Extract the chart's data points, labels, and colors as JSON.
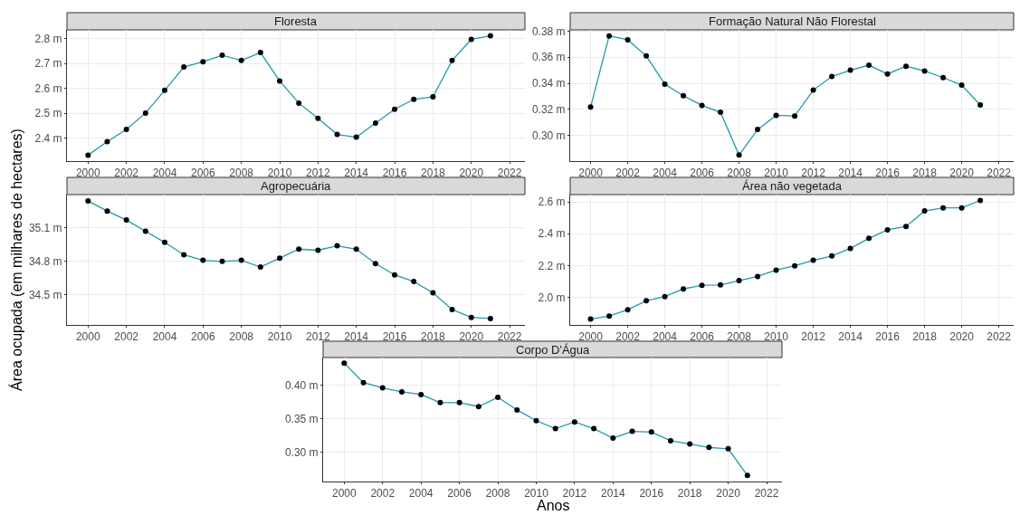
{
  "chart_data": [
    {
      "type": "line",
      "title": "Floresta",
      "x": [
        2000,
        2001,
        2002,
        2003,
        2004,
        2005,
        2006,
        2007,
        2008,
        2009,
        2010,
        2011,
        2012,
        2013,
        2014,
        2015,
        2016,
        2017,
        2018,
        2019,
        2020,
        2021
      ],
      "series": [
        {
          "color": "#1f9bab",
          "values": [
            2.332,
            2.386,
            2.435,
            2.501,
            2.592,
            2.686,
            2.707,
            2.733,
            2.712,
            2.744,
            2.63,
            2.541,
            2.48,
            2.415,
            2.404,
            2.461,
            2.516,
            2.556,
            2.566,
            2.712,
            2.797,
            2.811
          ]
        }
      ],
      "xlim": [
        1998.9,
        2022.8
      ],
      "xticks": [
        2000,
        2002,
        2004,
        2006,
        2008,
        2010,
        2012,
        2014,
        2016,
        2018,
        2020,
        2022
      ],
      "ylim": [
        2.308,
        2.835
      ],
      "yticks": [
        {
          "value": 2.4,
          "label": "2.4 m"
        },
        {
          "value": 2.5,
          "label": "2.5 m"
        },
        {
          "value": 2.6,
          "label": "2.6 m"
        },
        {
          "value": 2.7,
          "label": "2.7 m"
        },
        {
          "value": 2.8,
          "label": "2.8 m"
        }
      ],
      "grid": true,
      "marker": "circle"
    },
    {
      "type": "line",
      "title": "Formação Natural Não Florestal",
      "x": [
        2000,
        2001,
        2002,
        2003,
        2004,
        2005,
        2006,
        2007,
        2008,
        2009,
        2010,
        2011,
        2012,
        2013,
        2014,
        2015,
        2016,
        2017,
        2018,
        2019,
        2020,
        2021
      ],
      "series": [
        {
          "color": "#1f9bab",
          "values": [
            0.3218,
            0.3764,
            0.3734,
            0.361,
            0.3394,
            0.3305,
            0.3231,
            0.3178,
            0.285,
            0.3046,
            0.3155,
            0.315,
            0.3348,
            0.3452,
            0.3501,
            0.3539,
            0.3472,
            0.3531,
            0.3495,
            0.3444,
            0.3386,
            0.3234
          ]
        }
      ],
      "xlim": [
        1998.9,
        2022.8
      ],
      "xticks": [
        2000,
        2002,
        2004,
        2006,
        2008,
        2010,
        2012,
        2014,
        2016,
        2018,
        2020,
        2022
      ],
      "ylim": [
        0.2804,
        0.381
      ],
      "yticks": [
        {
          "value": 0.3,
          "label": "0.30 m"
        },
        {
          "value": 0.32,
          "label": "0.32 m"
        },
        {
          "value": 0.34,
          "label": "0.34 m"
        },
        {
          "value": 0.36,
          "label": "0.36 m"
        },
        {
          "value": 0.38,
          "label": "0.38 m"
        }
      ],
      "grid": true,
      "marker": "circle"
    },
    {
      "type": "line",
      "title": "Agropecuária",
      "ylabel": "Área ocupada (em milhares de hectares)",
      "x": [
        2000,
        2001,
        2002,
        2003,
        2004,
        2005,
        2006,
        2007,
        2008,
        2009,
        2010,
        2011,
        2012,
        2013,
        2014,
        2015,
        2016,
        2017,
        2018,
        2019,
        2020,
        2021
      ],
      "series": [
        {
          "color": "#1f9bab",
          "values": [
            35.34,
            35.25,
            35.17,
            35.07,
            34.97,
            34.86,
            34.81,
            34.8,
            34.81,
            34.75,
            34.83,
            34.91,
            34.9,
            34.94,
            34.91,
            34.78,
            34.68,
            34.62,
            34.52,
            34.37,
            34.3,
            34.29
          ]
        }
      ],
      "xlim": [
        1998.9,
        2022.8
      ],
      "xticks": [
        2000,
        2002,
        2004,
        2006,
        2008,
        2010,
        2012,
        2014,
        2016,
        2018,
        2020,
        2022
      ],
      "ylim": [
        34.233,
        35.397
      ],
      "yticks": [
        {
          "value": 34.5,
          "label": "34.5 m"
        },
        {
          "value": 34.8,
          "label": "34.8 m"
        },
        {
          "value": 35.1,
          "label": "35.1 m"
        }
      ],
      "grid": true,
      "marker": "circle"
    },
    {
      "type": "line",
      "title": "Área não vegetada",
      "x": [
        2000,
        2001,
        2002,
        2003,
        2004,
        2005,
        2006,
        2007,
        2008,
        2009,
        2010,
        2011,
        2012,
        2013,
        2014,
        2015,
        2016,
        2017,
        2018,
        2019,
        2020,
        2021
      ],
      "series": [
        {
          "color": "#1f9bab",
          "values": [
            1.862,
            1.881,
            1.921,
            1.977,
            2.004,
            2.052,
            2.075,
            2.077,
            2.104,
            2.131,
            2.171,
            2.198,
            2.233,
            2.26,
            2.308,
            2.371,
            2.425,
            2.446,
            2.544,
            2.563,
            2.563,
            2.61
          ]
        }
      ],
      "xlim": [
        1998.9,
        2022.8
      ],
      "xticks": [
        2000,
        2002,
        2004,
        2006,
        2008,
        2010,
        2012,
        2014,
        2016,
        2018,
        2020,
        2022
      ],
      "ylim": [
        1.825,
        2.647
      ],
      "yticks": [
        {
          "value": 2.0,
          "label": "2.0 m"
        },
        {
          "value": 2.2,
          "label": "2.2 m"
        },
        {
          "value": 2.4,
          "label": "2.4 m"
        },
        {
          "value": 2.6,
          "label": "2.6 m"
        }
      ],
      "grid": true,
      "marker": "circle"
    },
    {
      "type": "line",
      "title": "Corpo D'Água",
      "xlabel": "Anos",
      "x": [
        2000,
        2001,
        2002,
        2003,
        2004,
        2005,
        2006,
        2007,
        2008,
        2009,
        2010,
        2011,
        2012,
        2013,
        2014,
        2015,
        2016,
        2017,
        2018,
        2019,
        2020,
        2021
      ],
      "series": [
        {
          "color": "#1f9bab",
          "values": [
            0.433,
            0.404,
            0.396,
            0.39,
            0.386,
            0.374,
            0.374,
            0.368,
            0.382,
            0.363,
            0.347,
            0.335,
            0.345,
            0.335,
            0.321,
            0.331,
            0.33,
            0.317,
            0.312,
            0.307,
            0.305,
            0.265
          ]
        }
      ],
      "xlim": [
        1998.9,
        2022.8
      ],
      "xticks": [
        2000,
        2002,
        2004,
        2006,
        2008,
        2010,
        2012,
        2014,
        2016,
        2018,
        2020,
        2022
      ],
      "ylim": [
        0.256,
        0.4414
      ],
      "yticks": [
        {
          "value": 0.3,
          "label": "0.30 m"
        },
        {
          "value": 0.35,
          "label": "0.35 m"
        },
        {
          "value": 0.4,
          "label": "0.40 m"
        }
      ],
      "grid": true,
      "marker": "circle"
    }
  ]
}
